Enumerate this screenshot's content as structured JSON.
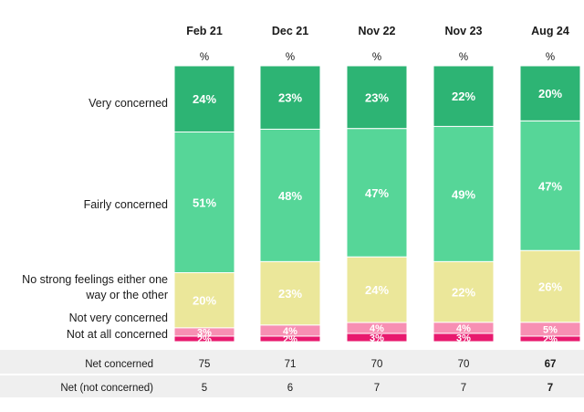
{
  "chart_data": {
    "type": "bar",
    "stacked": true,
    "categories": [
      "Feb 21",
      "Dec 21",
      "Nov 22",
      "Nov 23",
      "Aug 24"
    ],
    "unit_label": "%",
    "series": [
      {
        "name": "Very concerned",
        "color": "#2db474",
        "values": [
          24,
          23,
          23,
          22,
          20
        ],
        "labels": [
          "24%",
          "23%",
          "23%",
          "22%",
          "20%"
        ]
      },
      {
        "name": "Fairly concerned",
        "color": "#56d698",
        "values": [
          51,
          48,
          47,
          49,
          47
        ],
        "labels": [
          "51%",
          "48%",
          "47%",
          "49%",
          "47%"
        ]
      },
      {
        "name": "No strong feelings either one way or the other",
        "color": "#ebe79a",
        "values": [
          20,
          23,
          24,
          22,
          26
        ],
        "labels": [
          "20%",
          "23%",
          "24%",
          "22%",
          "26%"
        ]
      },
      {
        "name": "Not very concerned",
        "color": "#f78fb3",
        "values": [
          3,
          4,
          4,
          4,
          5
        ],
        "labels": [
          "3%",
          "4%",
          "4%",
          "4%",
          "5%"
        ]
      },
      {
        "name": "Not at all concerned",
        "color": "#e8196e",
        "values": [
          2,
          2,
          3,
          3,
          2
        ],
        "labels": [
          "2%",
          "2%",
          "3%",
          "3%",
          "2%"
        ]
      }
    ],
    "legend": "left, category labels aligned to segments"
  },
  "net_table": {
    "rows": [
      {
        "label": "Net concerned",
        "values": [
          "75",
          "71",
          "70",
          "70",
          "67"
        ]
      },
      {
        "label": "Net (not concerned)",
        "values": [
          "5",
          "6",
          "7",
          "7",
          "7"
        ]
      }
    ],
    "bold_last_column": true
  }
}
